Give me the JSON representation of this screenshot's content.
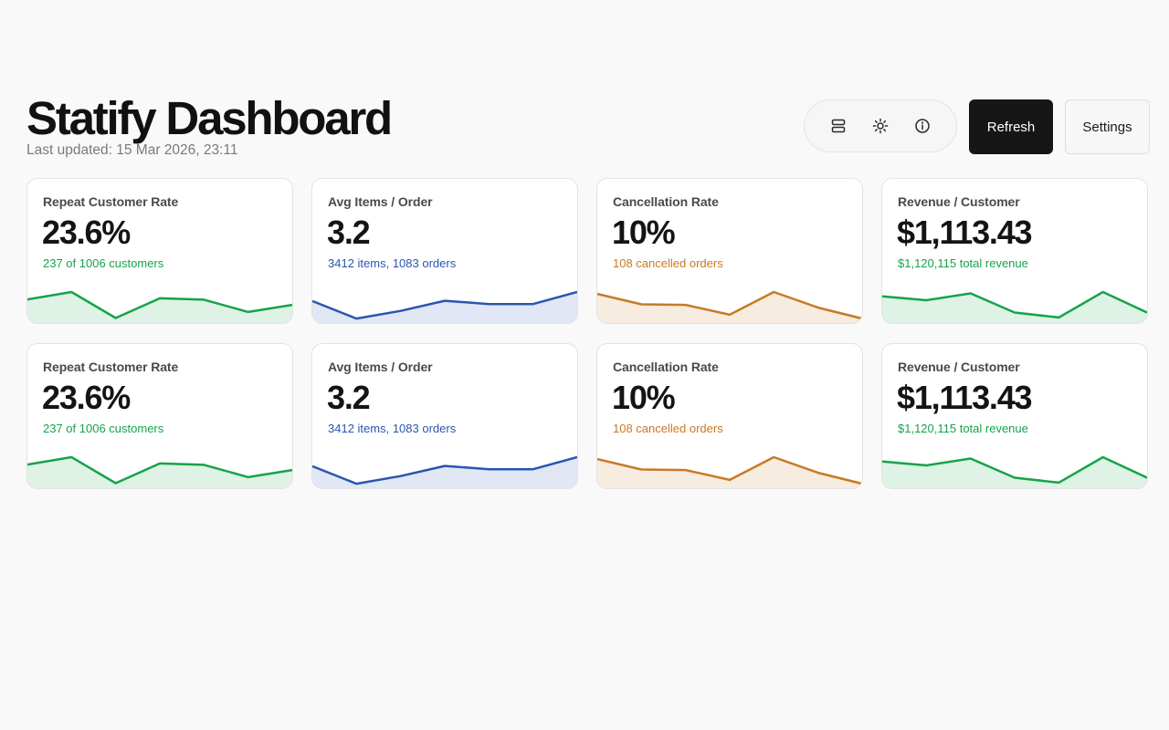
{
  "header": {
    "title": "Statify Dashboard",
    "last_updated": "Last updated: 15 Mar 2026, 23:11"
  },
  "toolbar": {
    "icons": [
      {
        "name": "layout-toggle-icon"
      },
      {
        "name": "theme-toggle-icon"
      },
      {
        "name": "info-icon"
      }
    ],
    "refresh_label": "Refresh",
    "settings_label": "Settings"
  },
  "colors": {
    "green": "#16a34a",
    "blue": "#2b55b0",
    "orange": "#c77a25"
  },
  "cards": [
    {
      "title": "Repeat Customer Rate",
      "value": "23.6%",
      "subtitle": "237 of 1006 customers",
      "color": "#16a34a",
      "trend": [
        0.73,
        1.0,
        0.05,
        0.77,
        0.72,
        0.27,
        0.53
      ]
    },
    {
      "title": "Avg Items / Order",
      "value": "3.2",
      "subtitle": "3412 items, 1083 orders",
      "color": "#2b55b0",
      "trend": [
        0.67,
        0.03,
        0.31,
        0.68,
        0.56,
        0.56,
        1.0
      ]
    },
    {
      "title": "Cancellation Rate",
      "value": "10%",
      "subtitle": "108 cancelled orders",
      "color": "#c77a25",
      "trend": [
        0.93,
        0.55,
        0.53,
        0.17,
        1.0,
        0.43,
        0.03
      ]
    },
    {
      "title": "Revenue / Customer",
      "value": "$1,113.43",
      "subtitle": "$1,120,115 total revenue",
      "color": "#16a34a",
      "trend": [
        0.84,
        0.7,
        0.95,
        0.25,
        0.07,
        1.0,
        0.25
      ]
    },
    {
      "title": "Repeat Customer Rate",
      "value": "23.6%",
      "subtitle": "237 of 1006 customers",
      "color": "#16a34a",
      "trend": [
        0.73,
        1.0,
        0.05,
        0.77,
        0.72,
        0.27,
        0.53
      ]
    },
    {
      "title": "Avg Items / Order",
      "value": "3.2",
      "subtitle": "3412 items, 1083 orders",
      "color": "#2b55b0",
      "trend": [
        0.67,
        0.03,
        0.31,
        0.68,
        0.56,
        0.56,
        1.0
      ]
    },
    {
      "title": "Cancellation Rate",
      "value": "10%",
      "subtitle": "108 cancelled orders",
      "color": "#c77a25",
      "trend": [
        0.93,
        0.55,
        0.53,
        0.17,
        1.0,
        0.43,
        0.03
      ]
    },
    {
      "title": "Revenue / Customer",
      "value": "$1,113.43",
      "subtitle": "$1,120,115 total revenue",
      "color": "#16a34a",
      "trend": [
        0.84,
        0.7,
        0.95,
        0.25,
        0.07,
        1.0,
        0.25
      ]
    }
  ]
}
